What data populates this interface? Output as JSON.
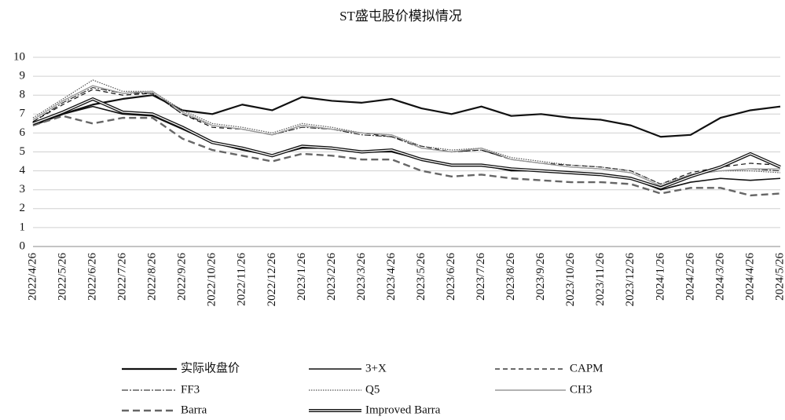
{
  "chart_data": {
    "type": "line",
    "title": "ST盛屯股价模拟情况",
    "categories": [
      "2022/4/26",
      "2022/5/26",
      "2022/6/26",
      "2022/7/26",
      "2022/8/26",
      "2022/9/26",
      "2022/10/26",
      "2022/11/26",
      "2022/12/26",
      "2023/1/26",
      "2023/2/26",
      "2023/3/26",
      "2023/4/26",
      "2023/5/26",
      "2023/6/26",
      "2023/7/26",
      "2023/8/26",
      "2023/9/26",
      "2023/10/26",
      "2023/11/26",
      "2023/12/26",
      "2024/1/26",
      "2024/2/26",
      "2024/3/26",
      "2024/4/26",
      "2024/5/26"
    ],
    "ylim": [
      0,
      10
    ],
    "yticks": [
      0,
      1,
      2,
      3,
      4,
      5,
      6,
      7,
      8,
      9,
      10
    ],
    "grid": true,
    "series": [
      {
        "name": "实际收盘价",
        "color": "#111111",
        "width": 2.2,
        "values": [
          6.4,
          7.0,
          7.5,
          7.8,
          8.0,
          7.2,
          7.0,
          7.5,
          7.2,
          7.9,
          7.7,
          7.6,
          7.8,
          7.3,
          7.0,
          7.4,
          6.9,
          7.0,
          6.8,
          6.7,
          6.4,
          5.8,
          5.9,
          6.8,
          7.2,
          7.4
        ]
      },
      {
        "name": "3+X",
        "color": "#111111",
        "width": 1.6,
        "values": [
          6.5,
          7.0,
          7.4,
          7.0,
          6.9,
          6.2,
          5.5,
          5.1,
          4.8,
          5.2,
          5.2,
          5.0,
          5.0,
          4.6,
          4.3,
          4.3,
          4.0,
          4.0,
          3.9,
          3.8,
          3.6,
          3.0,
          3.4,
          3.6,
          3.5,
          3.6
        ]
      },
      {
        "name": "CAPM",
        "color": "#111111",
        "width": 1.2,
        "dash": "6,4",
        "values": [
          6.6,
          7.5,
          8.3,
          8.0,
          8.1,
          7.0,
          6.3,
          6.2,
          5.9,
          6.4,
          6.2,
          6.0,
          5.8,
          5.3,
          5.0,
          5.1,
          4.6,
          4.4,
          4.3,
          4.2,
          4.0,
          3.3,
          3.9,
          4.2,
          4.4,
          4.3
        ]
      },
      {
        "name": "FF3",
        "color": "#111111",
        "width": 1,
        "dash": "8,2,2,2",
        "values": [
          6.6,
          7.6,
          8.4,
          8.1,
          8.1,
          7.0,
          6.4,
          6.2,
          5.9,
          6.3,
          6.2,
          5.9,
          5.8,
          5.2,
          5.0,
          5.1,
          4.6,
          4.4,
          4.2,
          4.1,
          3.9,
          3.2,
          3.8,
          4.0,
          4.1,
          4.0
        ]
      },
      {
        "name": "Q5",
        "color": "#555555",
        "width": 1.2,
        "dash": "1.5,1.5",
        "values": [
          6.8,
          7.8,
          8.8,
          8.2,
          8.2,
          7.2,
          6.5,
          6.3,
          6.0,
          6.5,
          6.3,
          6.0,
          5.9,
          5.3,
          5.1,
          5.2,
          4.7,
          4.5,
          4.3,
          4.2,
          4.0,
          3.3,
          3.8,
          4.0,
          4.0,
          3.9
        ]
      },
      {
        "name": "CH3",
        "color": "#999999",
        "width": 1.4,
        "values": [
          6.7,
          7.7,
          8.5,
          8.1,
          8.2,
          7.1,
          6.4,
          6.2,
          5.9,
          6.4,
          6.2,
          6.0,
          5.9,
          5.2,
          5.0,
          5.2,
          4.6,
          4.4,
          4.2,
          4.1,
          3.9,
          3.2,
          3.8,
          4.0,
          4.1,
          4.1
        ]
      },
      {
        "name": "Barra",
        "color": "#666666",
        "width": 2.4,
        "dash": "9,5",
        "values": [
          6.4,
          6.9,
          6.5,
          6.8,
          6.8,
          5.7,
          5.1,
          4.8,
          4.5,
          4.9,
          4.8,
          4.6,
          4.6,
          4.0,
          3.7,
          3.8,
          3.6,
          3.5,
          3.4,
          3.4,
          3.3,
          2.8,
          3.1,
          3.1,
          2.7,
          2.8
        ]
      },
      {
        "name": "Improved Barra",
        "color": "#111111",
        "width": 4,
        "double": true,
        "values": [
          6.5,
          7.1,
          7.8,
          7.1,
          7.0,
          6.3,
          5.5,
          5.2,
          4.8,
          5.3,
          5.2,
          5.0,
          5.1,
          4.6,
          4.3,
          4.3,
          4.1,
          4.0,
          3.9,
          3.8,
          3.6,
          3.1,
          3.7,
          4.2,
          4.9,
          4.2
        ]
      }
    ]
  }
}
